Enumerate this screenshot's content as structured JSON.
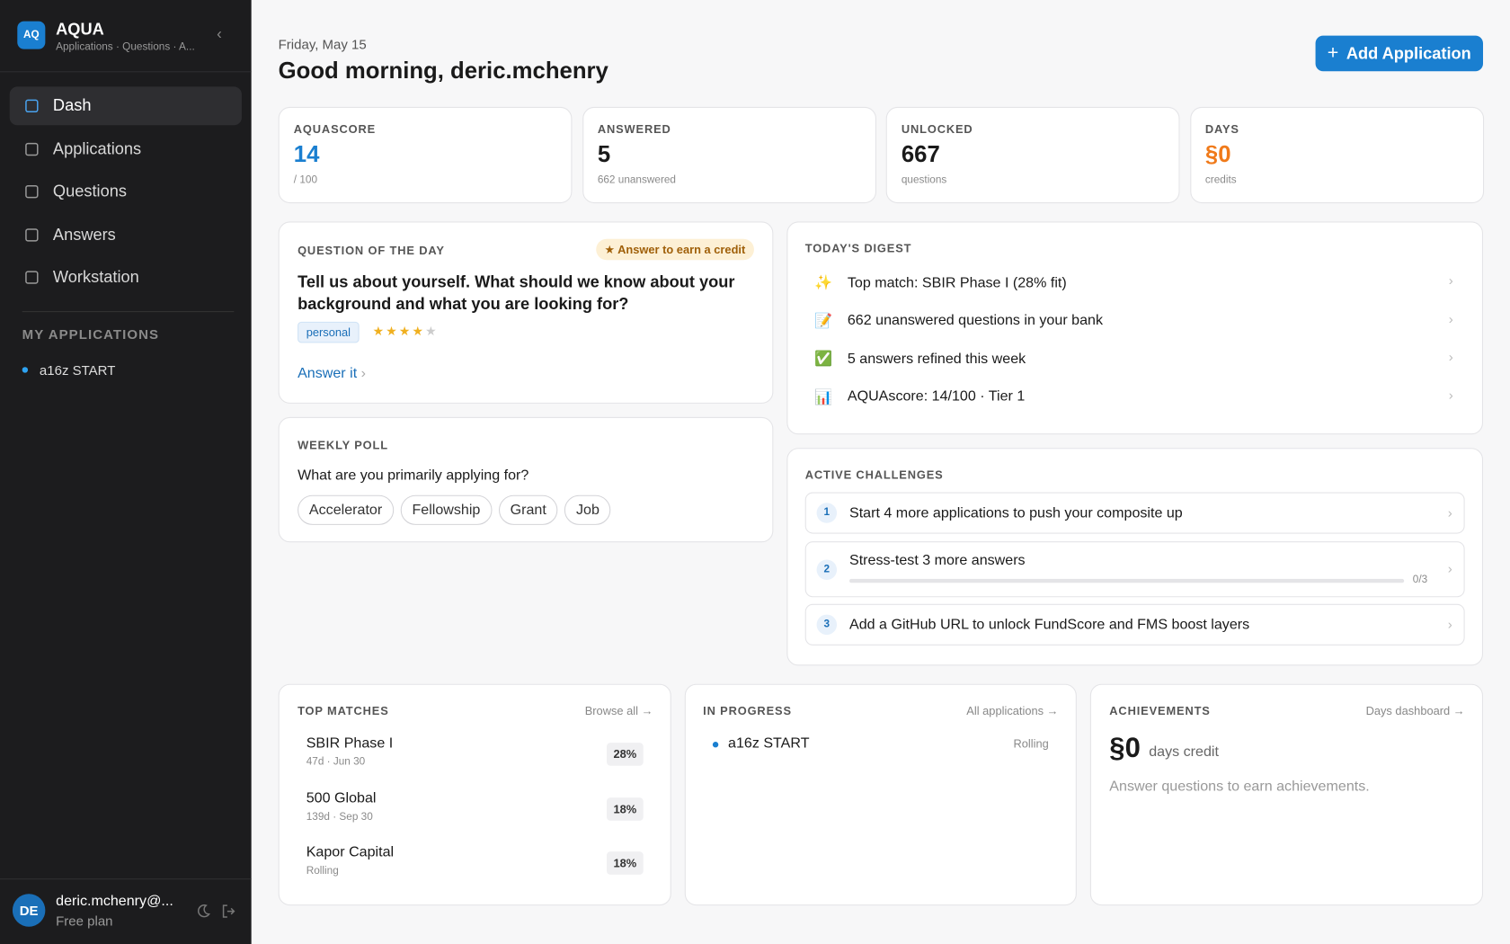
{
  "sidebar": {
    "logo": "AQ",
    "app_name": "AQUA",
    "app_subtitle": "Applications · Questions · A...",
    "nav": [
      "Dash",
      "Applications",
      "Questions",
      "Answers",
      "Workstation"
    ],
    "active_nav": 0,
    "section_title": "MY APPLICATIONS",
    "applications": [
      "a16z START"
    ],
    "user": {
      "avatar": "DE",
      "email": "deric.mchenry@...",
      "plan": "Free plan"
    }
  },
  "header": {
    "date": "Friday, May 15",
    "greeting": "Good morning, deric.mchenry",
    "add_button": "Add Application"
  },
  "stats": [
    {
      "label": "AQUASCORE",
      "value": 14,
      "sub": "/ 100",
      "color": "#1a7fd0"
    },
    {
      "label": "ANSWERED",
      "value": 5,
      "sub": "662 unanswered",
      "color": "#1a1a1a"
    },
    {
      "label": "UNLOCKED",
      "value": 667,
      "sub": "questions",
      "color": "#1a1a1a"
    },
    {
      "label": "DAYS",
      "value": "§0",
      "sub": "credits",
      "color": "#f07a1a"
    }
  ],
  "question_of_day": {
    "label": "QUESTION OF THE DAY",
    "badge": "Answer to earn a credit",
    "question": "Tell us about yourself. What should we know about your background and what you are looking for?",
    "tag": "personal",
    "rating": 4,
    "rating_max": 5,
    "link": "Answer it"
  },
  "weekly_poll": {
    "label": "WEEKLY POLL",
    "question": "What are you primarily applying for?",
    "options": [
      "Accelerator",
      "Fellowship",
      "Grant",
      "Job"
    ]
  },
  "digest": {
    "label": "TODAY'S DIGEST",
    "items": [
      {
        "icon": "✨",
        "text": "Top match: SBIR Phase I (28% fit)"
      },
      {
        "icon": "📝",
        "text": "662 unanswered questions in your bank"
      },
      {
        "icon": "✅",
        "text": "5 answers refined this week"
      },
      {
        "icon": "📊",
        "text": "AQUAscore: 14/100 · Tier 1"
      }
    ]
  },
  "challenges": {
    "label": "ACTIVE CHALLENGES",
    "items": [
      {
        "number": 1,
        "text": "Start 4 more applications to push your composite up"
      },
      {
        "number": 2,
        "text": "Stress-test 3 more answers",
        "progress": {
          "value": 0,
          "max": 3,
          "label": "0/3"
        }
      },
      {
        "number": 3,
        "text": "Add a GitHub URL to unlock FundScore and FMS boost layers"
      }
    ]
  },
  "top_matches": {
    "label": "TOP MATCHES",
    "link": "Browse all →",
    "items": [
      {
        "name": "SBIR Phase I",
        "meta": "47d · Jun 30",
        "fit": "28%"
      },
      {
        "name": "500 Global",
        "meta": "139d · Sep 30",
        "fit": "18%"
      },
      {
        "name": "Kapor Capital",
        "meta": "Rolling",
        "fit": "18%"
      }
    ]
  },
  "in_progress": {
    "label": "IN PROGRESS",
    "link": "All applications →",
    "items": [
      {
        "name": "a16z START",
        "status": "Rolling"
      }
    ]
  },
  "achievements": {
    "label": "ACHIEVEMENTS",
    "link": "Days dashboard →",
    "credit": "§0",
    "credit_label": "days credit",
    "empty": "Answer questions to earn achievements."
  }
}
